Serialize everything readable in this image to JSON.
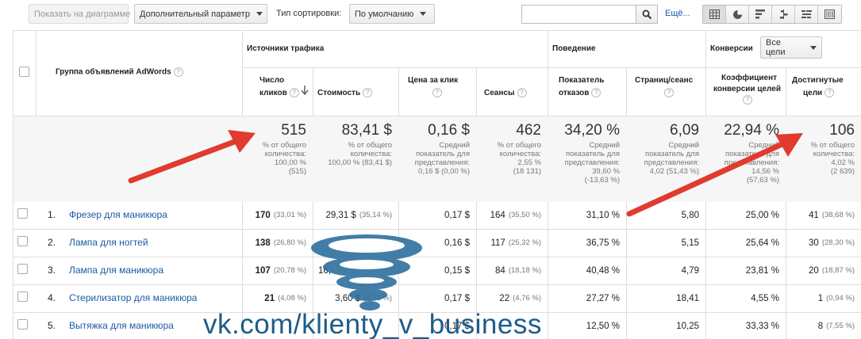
{
  "toolbar": {
    "show_on_chart": "Показать на диаграмме",
    "secondary_dimension": "Дополнительный параметр",
    "sort_type_label": "Тип сортировки:",
    "sort_type_value": "По умолчанию",
    "search_placeholder": "",
    "more": "Ещё..."
  },
  "header": {
    "dimension": "Группа объявлений AdWords",
    "groups": {
      "acquisition": "Источники трафика",
      "behavior": "Поведение",
      "conversions": "Конверсии",
      "goal_select": "Все цели"
    },
    "columns": [
      {
        "line1": "Число",
        "line2": "кликов"
      },
      {
        "line1": "Стоимость",
        "line2": ""
      },
      {
        "line1": "Цена за клик",
        "line2": ""
      },
      {
        "line1": "Сеансы",
        "line2": ""
      },
      {
        "line1": "Показатель",
        "line2": "отказов"
      },
      {
        "line1": "Страниц/сеанс",
        "line2": ""
      },
      {
        "line1": "Коэффициент",
        "line2": "конверсии целей"
      },
      {
        "line1": "Достигнутые",
        "line2": "цели"
      }
    ]
  },
  "totals": [
    {
      "value": "515",
      "l1": "% от общего",
      "l2": "количества:",
      "l3": "100,00 %",
      "l4": "(515)"
    },
    {
      "value": "83,41 $",
      "l1": "% от общего",
      "l2": "количества:",
      "l3": "100,00 % (83,41 $)",
      "l4": ""
    },
    {
      "value": "0,16 $",
      "l1": "Средний",
      "l2": "показатель для",
      "l3": "представления:",
      "l4": "0,16 $ (0,00 %)"
    },
    {
      "value": "462",
      "l1": "% от общего",
      "l2": "количества:",
      "l3": "2,55 %",
      "l4": "(18 131)"
    },
    {
      "value": "34,20 %",
      "l1": "Средний",
      "l2": "показатель для",
      "l3": "представления:",
      "l4": "39,60 %",
      "l5": "(-13,63 %)"
    },
    {
      "value": "6,09",
      "l1": "Средний",
      "l2": "показатель для",
      "l3": "представления:",
      "l4": "4,02 (51,43 %)"
    },
    {
      "value": "22,94 %",
      "l1": "Средний",
      "l2": "показатель для",
      "l3": "представления:",
      "l4": "14,56 %",
      "l5": "(57,63 %)"
    },
    {
      "value": "106",
      "l1": "% от общего",
      "l2": "количества:",
      "l3": "4,02 %",
      "l4": "(2 639)"
    }
  ],
  "rows": [
    {
      "num": "1.",
      "name": "Фрезер для маникюра",
      "clicks": "170",
      "clicks_pct": "(33,01 %)",
      "cost": "29,31 $",
      "cost_pct": "(35,14 %)",
      "cpc": "0,17 $",
      "sessions": "164",
      "sessions_pct": "(35,50 %)",
      "bounce": "31,10 %",
      "pages": "5,80",
      "conv": "25,00 %",
      "goals": "41",
      "goals_pct": "(38,68 %)"
    },
    {
      "num": "2.",
      "name": "Лампа для ногтей",
      "clicks": "138",
      "clicks_pct": "(26,80 %)",
      "cost": "",
      "cost_pct": "",
      "cpc": "0,16 $",
      "sessions": "117",
      "sessions_pct": "(25,32 %)",
      "bounce": "36,75 %",
      "pages": "5,15",
      "conv": "25,64 %",
      "goals": "30",
      "goals_pct": "(28,30 %)"
    },
    {
      "num": "3.",
      "name": "Лампа для маникюра",
      "clicks": "107",
      "clicks_pct": "(20,78 %)",
      "cost": "16,",
      "cost_pct": "",
      "cpc": "0,15 $",
      "sessions": "84",
      "sessions_pct": "(18,18 %)",
      "bounce": "40,48 %",
      "pages": "4,79",
      "conv": "23,81 %",
      "goals": "20",
      "goals_pct": "(18,87 %)"
    },
    {
      "num": "4.",
      "name": "Стерилизатор для маникюра",
      "clicks": "21",
      "clicks_pct": "(4,08 %)",
      "cost": "3,60 $",
      "cost_pct": "(4,31 %)",
      "cpc": "0,17 $",
      "sessions": "22",
      "sessions_pct": "(4,76 %)",
      "bounce": "27,27 %",
      "pages": "18,41",
      "conv": "4,55 %",
      "goals": "1",
      "goals_pct": "(0,94 %)"
    },
    {
      "num": "5.",
      "name": "Вытяжка для маникюра",
      "clicks": "",
      "clicks_pct": "",
      "cost": "",
      "cost_pct": "",
      "cpc": "0,17 $",
      "sessions": "",
      "sessions_pct": "",
      "bounce": "12,50 %",
      "pages": "10,25",
      "conv": "33,33 %",
      "goals": "8",
      "goals_pct": "(7,55 %)"
    }
  ],
  "watermark": "vk.com/klienty_v_business",
  "colors": {
    "link": "#1a5aa6",
    "arrow": "#e03b2e",
    "watermark": "#1d5c8a"
  }
}
